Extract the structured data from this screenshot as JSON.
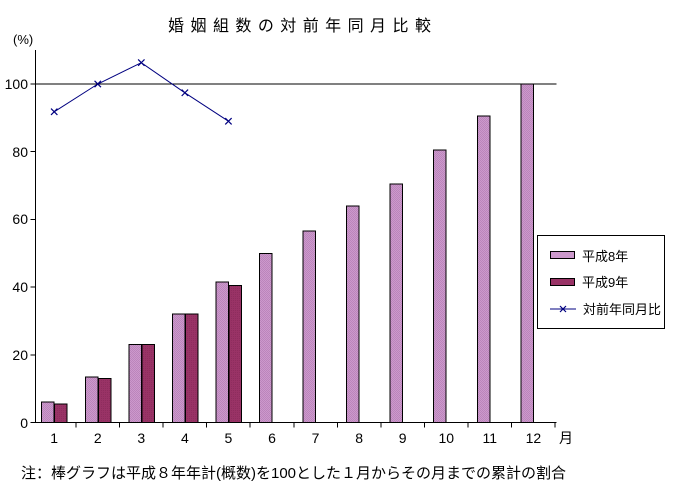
{
  "title": "婚 姻 組 数 の 対 前 年 同 月 比 較",
  "y_axis_unit": "(%)",
  "x_axis_unit": "月",
  "note": "注：棒グラフは平成８年年計(概数)を100とした１月からその月までの累計の割合",
  "colors": {
    "heisei8_bar": "#CC99CC",
    "heisei8_bar_alt": "#BB85BB",
    "heisei9_bar": "#993366",
    "heisei9_bar_alt": "#8E2D5E",
    "ratio_line": "#000080",
    "axis": "#000000"
  },
  "legend": {
    "items": [
      {
        "label": "平成8年",
        "type": "bar"
      },
      {
        "label": "平成9年",
        "type": "bar"
      },
      {
        "label": "対前年同月比",
        "type": "line"
      }
    ],
    "position": "right"
  },
  "chart_data": {
    "type": "bar",
    "combo": "bars + line overlay",
    "title": "婚姻組数の対前年同月比較",
    "categories": [
      1,
      2,
      3,
      4,
      5,
      6,
      7,
      8,
      9,
      10,
      11,
      12
    ],
    "x_unit": "月",
    "y_unit": "%",
    "ylim": [
      0,
      110
    ],
    "yticks": [
      0,
      20,
      40,
      60,
      80,
      100
    ],
    "reference_line_y": 100,
    "grid": "single horizontal line at 100 only",
    "legend_position": "right",
    "series": [
      {
        "name": "平成8年",
        "type": "bar",
        "values": [
          6,
          13.5,
          23,
          32,
          41.5,
          50,
          56.5,
          64,
          70.5,
          80.5,
          90.5,
          100
        ]
      },
      {
        "name": "平成9年",
        "type": "bar",
        "values": [
          5.5,
          13,
          23,
          32,
          40.5
        ]
      },
      {
        "name": "対前年同月比",
        "type": "line",
        "marker": "x",
        "values": [
          91.8,
          100,
          106.3,
          97.4,
          89
        ]
      }
    ]
  }
}
